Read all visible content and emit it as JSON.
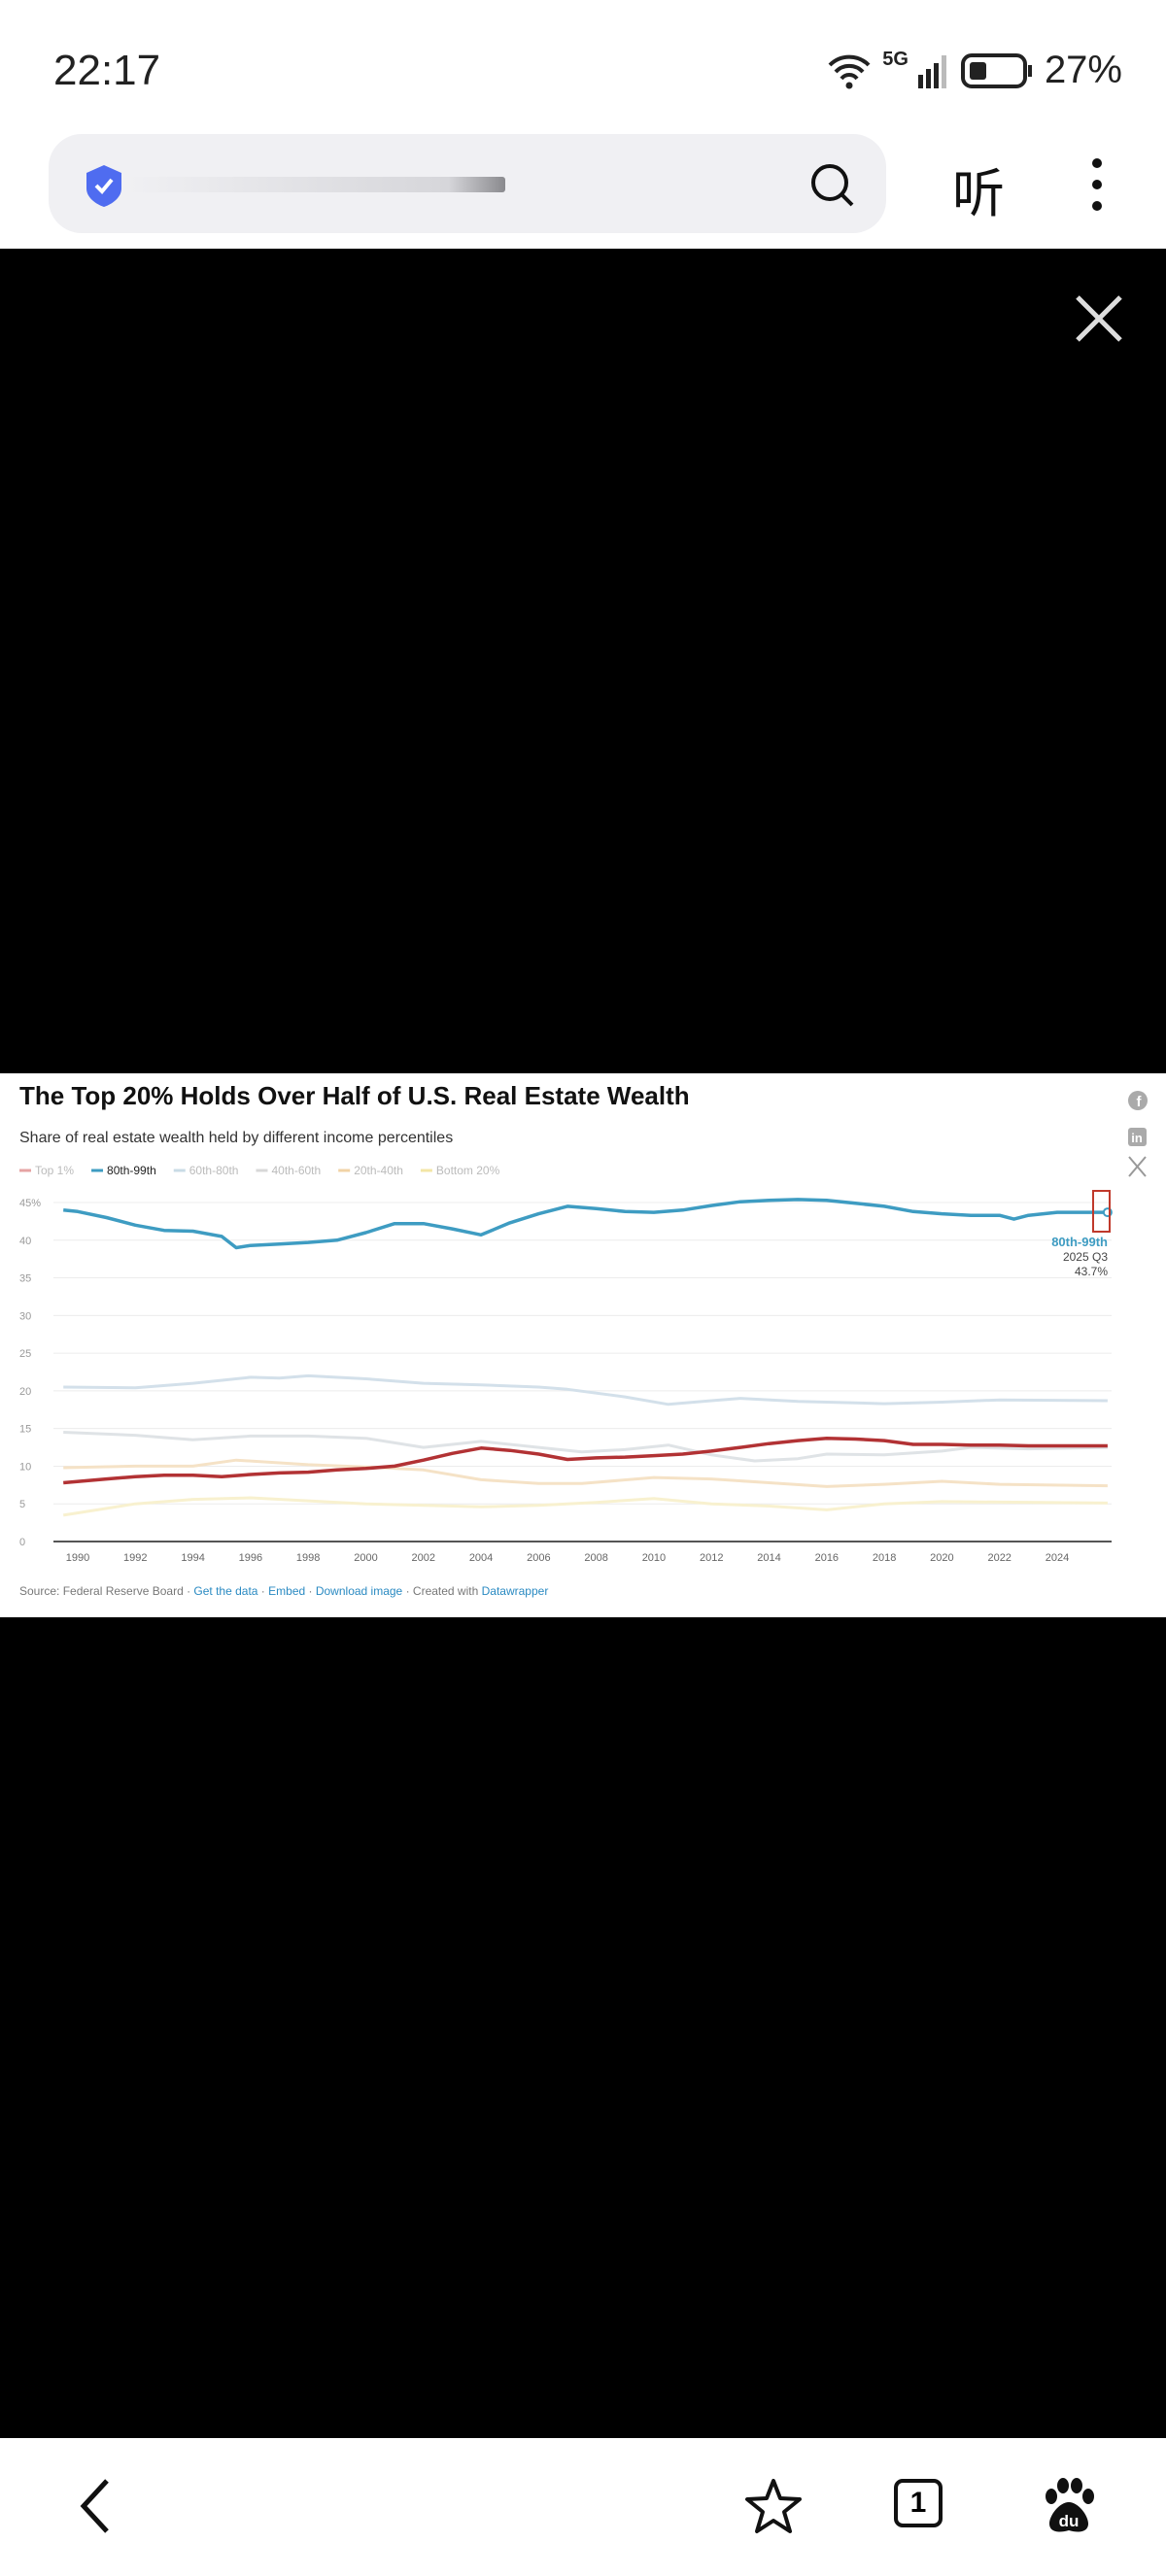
{
  "status_bar": {
    "time": "22:17",
    "network": "5G",
    "battery": "27%",
    "battery_level": 0.27
  },
  "address_bar": {
    "secure_icon": "shield-check-icon",
    "search_icon": "search-icon"
  },
  "toolbar": {
    "listen_label": "听",
    "more_icon": "more-vertical-icon"
  },
  "viewer": {
    "close_icon": "close-icon"
  },
  "chart_data": {
    "type": "line",
    "title": "The Top 20% Holds Over Half of U.S. Real Estate Wealth",
    "subtitle": "Share of real estate wealth held by different income percentiles",
    "xlabel": "",
    "ylabel": "",
    "xlim": [
      1989.5,
      2025.75
    ],
    "ylim": [
      0,
      45
    ],
    "x_ticks": [
      "1990",
      "1992",
      "1994",
      "1996",
      "1998",
      "2000",
      "2002",
      "2004",
      "2006",
      "2008",
      "2010",
      "2012",
      "2014",
      "2016",
      "2018",
      "2020",
      "2022",
      "2024"
    ],
    "y_ticks": [
      "0",
      "5",
      "10",
      "15",
      "20",
      "25",
      "30",
      "35",
      "40",
      "45%"
    ],
    "grid": true,
    "legend_position": "top-left",
    "series": [
      {
        "name": "Top 1%",
        "color": "#b23234",
        "legend_color": "#e6a3a3",
        "points": [
          [
            1989.5,
            7.8
          ],
          [
            1991,
            8.3
          ],
          [
            1992,
            8.6
          ],
          [
            1993,
            8.8
          ],
          [
            1994,
            8.8
          ],
          [
            1995,
            8.6
          ],
          [
            1996,
            8.9
          ],
          [
            1997,
            9.1
          ],
          [
            1998,
            9.2
          ],
          [
            1999,
            9.5
          ],
          [
            2000,
            9.7
          ],
          [
            2001,
            10
          ],
          [
            2002,
            10.8
          ],
          [
            2003,
            11.7
          ],
          [
            2004,
            12.4
          ],
          [
            2005,
            12.1
          ],
          [
            2006,
            11.6
          ],
          [
            2007,
            10.9
          ],
          [
            2008,
            11.1
          ],
          [
            2009,
            11.2
          ],
          [
            2010,
            11.4
          ],
          [
            2011,
            11.6
          ],
          [
            2012,
            12
          ],
          [
            2013,
            12.5
          ],
          [
            2014,
            13
          ],
          [
            2015,
            13.4
          ],
          [
            2016,
            13.7
          ],
          [
            2017,
            13.6
          ],
          [
            2018,
            13.4
          ],
          [
            2019,
            12.9
          ],
          [
            2020,
            12.9
          ],
          [
            2021,
            12.8
          ],
          [
            2022,
            12.8
          ],
          [
            2023,
            12.7
          ],
          [
            2025.75,
            12.7
          ]
        ]
      },
      {
        "name": "80th-99th",
        "color": "#3e9cc2",
        "legend_color": "#3e9cc2",
        "points": [
          [
            1989.5,
            44
          ],
          [
            1990,
            43.8
          ],
          [
            1991,
            43
          ],
          [
            1992,
            42
          ],
          [
            1993,
            41.3
          ],
          [
            1994,
            41.2
          ],
          [
            1995,
            40.5
          ],
          [
            1995.5,
            39
          ],
          [
            1996,
            39.3
          ],
          [
            1997,
            39.5
          ],
          [
            1998,
            39.7
          ],
          [
            1999,
            40
          ],
          [
            2000,
            41
          ],
          [
            2001,
            42.2
          ],
          [
            2002,
            42.2
          ],
          [
            2003,
            41.5
          ],
          [
            2004,
            40.7
          ],
          [
            2005,
            42.3
          ],
          [
            2006,
            43.5
          ],
          [
            2007,
            44.5
          ],
          [
            2008,
            44.2
          ],
          [
            2009,
            43.8
          ],
          [
            2010,
            43.7
          ],
          [
            2011,
            44
          ],
          [
            2012,
            44.6
          ],
          [
            2013,
            45.1
          ],
          [
            2014,
            45.3
          ],
          [
            2015,
            45.4
          ],
          [
            2016,
            45.3
          ],
          [
            2017,
            44.9
          ],
          [
            2018,
            44.5
          ],
          [
            2019,
            43.8
          ],
          [
            2020,
            43.5
          ],
          [
            2021,
            43.3
          ],
          [
            2022,
            43.3
          ],
          [
            2022.5,
            42.8
          ],
          [
            2023,
            43.3
          ],
          [
            2024,
            43.7
          ],
          [
            2025.75,
            43.7
          ]
        ]
      },
      {
        "name": "60th-80th",
        "color": "#d3e0ea",
        "legend_color": "#c9dbe6",
        "points": [
          [
            1989.5,
            20.5
          ],
          [
            1992,
            20.4
          ],
          [
            1994,
            21
          ],
          [
            1996,
            21.8
          ],
          [
            1997,
            21.7
          ],
          [
            1998,
            22
          ],
          [
            2000,
            21.6
          ],
          [
            2002,
            21
          ],
          [
            2004,
            20.8
          ],
          [
            2006,
            20.5
          ],
          [
            2007,
            20.2
          ],
          [
            2009,
            19.2
          ],
          [
            2010.5,
            18.2
          ],
          [
            2012,
            18.7
          ],
          [
            2013,
            19
          ],
          [
            2015,
            18.6
          ],
          [
            2018,
            18.3
          ],
          [
            2020,
            18.5
          ],
          [
            2022,
            18.8
          ],
          [
            2025.75,
            18.7
          ]
        ]
      },
      {
        "name": "40th-60th",
        "color": "#dfe3e6",
        "legend_color": "#d8d8d8",
        "points": [
          [
            1989.5,
            14.5
          ],
          [
            1992,
            14.1
          ],
          [
            1994,
            13.5
          ],
          [
            1996,
            14
          ],
          [
            1998,
            14
          ],
          [
            2000,
            13.7
          ],
          [
            2002,
            12.5
          ],
          [
            2004,
            13.3
          ],
          [
            2006,
            12.5
          ],
          [
            2007.5,
            11.9
          ],
          [
            2009,
            12.2
          ],
          [
            2010.5,
            12.8
          ],
          [
            2012,
            11.5
          ],
          [
            2013.5,
            10.7
          ],
          [
            2015,
            11
          ],
          [
            2016,
            11.6
          ],
          [
            2018,
            11.5
          ],
          [
            2020,
            12
          ],
          [
            2021,
            12.5
          ],
          [
            2023,
            12.3
          ],
          [
            2025.75,
            12.5
          ]
        ]
      },
      {
        "name": "20th-40th",
        "color": "#f5e2c6",
        "legend_color": "#f1d3a6",
        "points": [
          [
            1989.5,
            9.8
          ],
          [
            1992,
            10
          ],
          [
            1994,
            10
          ],
          [
            1995.5,
            10.8
          ],
          [
            1998,
            10.2
          ],
          [
            2000,
            9.9
          ],
          [
            2002,
            9.5
          ],
          [
            2004,
            8.2
          ],
          [
            2006,
            7.7
          ],
          [
            2007.5,
            7.7
          ],
          [
            2010,
            8.5
          ],
          [
            2012,
            8.3
          ],
          [
            2014,
            7.8
          ],
          [
            2016,
            7.3
          ],
          [
            2018,
            7.6
          ],
          [
            2020,
            8
          ],
          [
            2022,
            7.6
          ],
          [
            2025.75,
            7.4
          ]
        ]
      },
      {
        "name": "Bottom 20%",
        "color": "#f8f1cf",
        "legend_color": "#f3e6a6",
        "points": [
          [
            1989.5,
            3.5
          ],
          [
            1992,
            5
          ],
          [
            1994,
            5.6
          ],
          [
            1996,
            5.8
          ],
          [
            1998,
            5.4
          ],
          [
            2000,
            5
          ],
          [
            2002,
            4.8
          ],
          [
            2004,
            4.6
          ],
          [
            2006,
            4.8
          ],
          [
            2008,
            5.2
          ],
          [
            2010,
            5.7
          ],
          [
            2012,
            5
          ],
          [
            2014,
            4.7
          ],
          [
            2016,
            4.2
          ],
          [
            2018,
            5
          ],
          [
            2020,
            5.3
          ],
          [
            2025.75,
            5.1
          ]
        ]
      }
    ],
    "annotation": {
      "series": "80th-99th",
      "period": "2025 Q3",
      "value": "43.7%"
    },
    "share_icons": [
      "facebook-icon",
      "linkedin-icon",
      "x-icon"
    ],
    "footer": {
      "source": "Source: Federal Reserve Board",
      "get_data": "Get the data",
      "embed": "Embed",
      "download": "Download image",
      "created": "Created with",
      "tool": "Datawrapper",
      "sep": " · "
    }
  },
  "bottom_nav": {
    "tab_count": "1",
    "back_icon": "back-icon",
    "star_icon": "star-icon",
    "tabs_icon": "tabs-icon",
    "baidu_icon": "baidu-paw-icon"
  }
}
